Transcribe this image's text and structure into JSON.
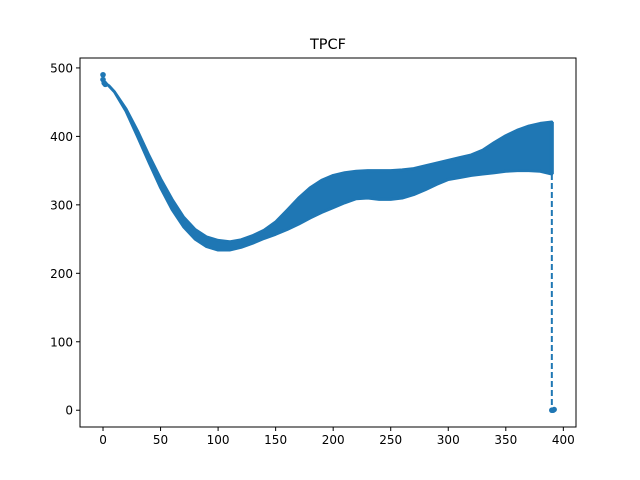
{
  "chart_data": {
    "type": "scatter",
    "title": "TPCF",
    "xlabel": "",
    "ylabel": "",
    "xlim": [
      -20,
      411
    ],
    "ylim": [
      -24.5,
      514.5
    ],
    "xticks": [
      0,
      50,
      100,
      150,
      200,
      250,
      300,
      350,
      400
    ],
    "yticks": [
      0,
      100,
      200,
      300,
      400,
      500
    ],
    "grid": false,
    "legend": "none",
    "color": "#1f77b4",
    "series": [
      {
        "style": "band",
        "upper": [
          [
            0,
            480
          ],
          [
            5,
            474
          ],
          [
            10,
            465
          ],
          [
            20,
            440
          ],
          [
            30,
            408
          ],
          [
            40,
            372
          ],
          [
            50,
            338
          ],
          [
            60,
            308
          ],
          [
            70,
            282
          ],
          [
            80,
            264
          ],
          [
            90,
            253
          ],
          [
            100,
            248
          ],
          [
            110,
            246
          ],
          [
            120,
            249
          ],
          [
            130,
            255
          ],
          [
            140,
            263
          ],
          [
            150,
            275
          ],
          [
            160,
            292
          ],
          [
            170,
            310
          ],
          [
            180,
            325
          ],
          [
            190,
            336
          ],
          [
            200,
            343
          ],
          [
            210,
            347
          ],
          [
            220,
            349
          ],
          [
            230,
            350
          ],
          [
            240,
            350
          ],
          [
            250,
            350
          ],
          [
            260,
            351
          ],
          [
            270,
            353
          ],
          [
            280,
            357
          ],
          [
            290,
            361
          ],
          [
            300,
            365
          ],
          [
            310,
            369
          ],
          [
            320,
            373
          ],
          [
            330,
            380
          ],
          [
            340,
            391
          ],
          [
            350,
            401
          ],
          [
            360,
            409
          ],
          [
            370,
            415
          ],
          [
            380,
            419
          ],
          [
            390,
            421
          ]
        ],
        "lower": [
          [
            0,
            480
          ],
          [
            5,
            474
          ],
          [
            10,
            465
          ],
          [
            20,
            437
          ],
          [
            30,
            400
          ],
          [
            40,
            362
          ],
          [
            50,
            325
          ],
          [
            60,
            293
          ],
          [
            70,
            268
          ],
          [
            80,
            250
          ],
          [
            90,
            239
          ],
          [
            100,
            234
          ],
          [
            110,
            234
          ],
          [
            120,
            238
          ],
          [
            130,
            244
          ],
          [
            140,
            251
          ],
          [
            150,
            257
          ],
          [
            160,
            264
          ],
          [
            170,
            272
          ],
          [
            180,
            281
          ],
          [
            190,
            289
          ],
          [
            200,
            296
          ],
          [
            210,
            303
          ],
          [
            220,
            309
          ],
          [
            230,
            310
          ],
          [
            240,
            308
          ],
          [
            250,
            308
          ],
          [
            260,
            310
          ],
          [
            270,
            315
          ],
          [
            280,
            322
          ],
          [
            290,
            330
          ],
          [
            300,
            337
          ],
          [
            310,
            340
          ],
          [
            320,
            343
          ],
          [
            330,
            345
          ],
          [
            340,
            347
          ],
          [
            350,
            349
          ],
          [
            360,
            350
          ],
          [
            370,
            350
          ],
          [
            380,
            349
          ],
          [
            390,
            345
          ]
        ]
      },
      {
        "style": "points",
        "points": [
          [
            0,
            490
          ],
          [
            0,
            483
          ],
          [
            1,
            478
          ],
          [
            2,
            476
          ],
          [
            391,
            0
          ],
          [
            392,
            1
          ],
          [
            390,
            0
          ]
        ]
      },
      {
        "style": "dashed-line",
        "points": [
          [
            390,
            345
          ],
          [
            390,
            0
          ]
        ]
      }
    ]
  }
}
